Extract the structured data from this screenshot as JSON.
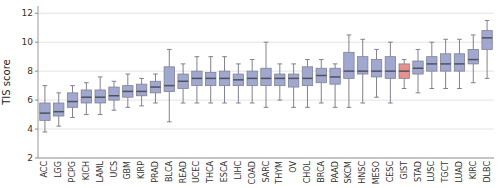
{
  "chart_data": {
    "type": "box",
    "categories": [
      "ACC",
      "LGG",
      "PCPG",
      "KICH",
      "LAML",
      "UCS",
      "GBM",
      "KIRP",
      "PRAD",
      "BLCA",
      "READ",
      "UCEC",
      "THCA",
      "ESCA",
      "LIHC",
      "COAD",
      "SARC",
      "THYM",
      "OV",
      "CHOL",
      "BRCA",
      "PAAD",
      "SKCM",
      "HNSC",
      "MESO",
      "CESC",
      "GIST",
      "STAD",
      "LUSC",
      "TGCT",
      "LUAD",
      "KIRC",
      "DLBC"
    ],
    "boxes": [
      {
        "q1": 4.6,
        "median": 5.1,
        "q3": 5.8,
        "whislo": 3.8,
        "whishi": 7.0
      },
      {
        "q1": 4.9,
        "median": 5.2,
        "q3": 5.8,
        "whislo": 4.2,
        "whishi": 6.5
      },
      {
        "q1": 5.5,
        "median": 5.9,
        "q3": 6.5,
        "whislo": 4.8,
        "whishi": 7.0
      },
      {
        "q1": 5.8,
        "median": 6.2,
        "q3": 6.7,
        "whislo": 5.0,
        "whishi": 7.2
      },
      {
        "q1": 5.8,
        "median": 6.2,
        "q3": 6.7,
        "whislo": 5.0,
        "whishi": 7.6
      },
      {
        "q1": 6.0,
        "median": 6.3,
        "q3": 6.9,
        "whislo": 5.3,
        "whishi": 7.3
      },
      {
        "q1": 6.2,
        "median": 6.6,
        "q3": 7.0,
        "whislo": 5.5,
        "whishi": 7.8
      },
      {
        "q1": 6.3,
        "median": 6.6,
        "q3": 7.1,
        "whislo": 5.6,
        "whishi": 7.5
      },
      {
        "q1": 6.5,
        "median": 6.9,
        "q3": 7.3,
        "whislo": 5.8,
        "whishi": 7.8
      },
      {
        "q1": 6.6,
        "median": 7.0,
        "q3": 8.3,
        "whislo": 4.5,
        "whishi": 9.5
      },
      {
        "q1": 6.8,
        "median": 7.3,
        "q3": 7.8,
        "whislo": 5.8,
        "whishi": 8.5
      },
      {
        "q1": 7.0,
        "median": 7.5,
        "q3": 8.0,
        "whislo": 5.8,
        "whishi": 9.0
      },
      {
        "q1": 7.0,
        "median": 7.5,
        "q3": 7.9,
        "whislo": 5.8,
        "whishi": 9.0
      },
      {
        "q1": 7.0,
        "median": 7.5,
        "q3": 8.0,
        "whislo": 5.8,
        "whishi": 9.0
      },
      {
        "q1": 7.0,
        "median": 7.4,
        "q3": 7.8,
        "whislo": 5.8,
        "whishi": 8.5
      },
      {
        "q1": 7.0,
        "median": 7.5,
        "q3": 8.0,
        "whislo": 5.8,
        "whishi": 8.8
      },
      {
        "q1": 7.0,
        "median": 7.5,
        "q3": 8.2,
        "whislo": 5.5,
        "whishi": 10.0
      },
      {
        "q1": 7.0,
        "median": 7.5,
        "q3": 7.8,
        "whislo": 6.0,
        "whishi": 8.5
      },
      {
        "q1": 6.9,
        "median": 7.5,
        "q3": 7.8,
        "whislo": 5.5,
        "whishi": 8.5
      },
      {
        "q1": 7.0,
        "median": 7.5,
        "q3": 8.3,
        "whislo": 5.5,
        "whishi": 8.8
      },
      {
        "q1": 7.2,
        "median": 7.7,
        "q3": 8.2,
        "whislo": 5.8,
        "whishi": 8.8
      },
      {
        "q1": 7.1,
        "median": 7.6,
        "q3": 8.2,
        "whislo": 5.5,
        "whishi": 8.5
      },
      {
        "q1": 7.5,
        "median": 8.0,
        "q3": 9.3,
        "whislo": 5.5,
        "whishi": 10.5
      },
      {
        "q1": 7.8,
        "median": 8.0,
        "q3": 9.0,
        "whislo": 5.8,
        "whishi": 10.2
      },
      {
        "q1": 7.6,
        "median": 8.0,
        "q3": 8.8,
        "whislo": 6.2,
        "whishi": 9.5
      },
      {
        "q1": 7.5,
        "median": 8.0,
        "q3": 9.0,
        "whislo": 5.8,
        "whishi": 10.0
      },
      {
        "q1": 7.5,
        "median": 8.0,
        "q3": 8.5,
        "whislo": 6.8,
        "whishi": 8.8
      },
      {
        "q1": 7.8,
        "median": 8.2,
        "q3": 8.7,
        "whislo": 6.5,
        "whishi": 9.5
      },
      {
        "q1": 8.0,
        "median": 8.5,
        "q3": 9.0,
        "whislo": 6.8,
        "whishi": 10.0
      },
      {
        "q1": 8.0,
        "median": 8.5,
        "q3": 9.2,
        "whislo": 6.8,
        "whishi": 10.2
      },
      {
        "q1": 8.0,
        "median": 8.5,
        "q3": 9.2,
        "whislo": 6.8,
        "whishi": 10.2
      },
      {
        "q1": 8.5,
        "median": 8.8,
        "q3": 9.5,
        "whislo": 7.2,
        "whishi": 10.5
      },
      {
        "q1": 9.5,
        "median": 10.3,
        "q3": 10.8,
        "whislo": 7.5,
        "whishi": 11.5
      }
    ],
    "colors": [
      "#a0a8d0",
      "#a0a8d0",
      "#a0a8d0",
      "#a0a8d0",
      "#a0a8d0",
      "#a0a8d0",
      "#a0a8d0",
      "#a0a8d0",
      "#a0a8d0",
      "#a0a8d0",
      "#a0a8d0",
      "#a0a8d0",
      "#a0a8d0",
      "#a0a8d0",
      "#a0a8d0",
      "#a0a8d0",
      "#a0a8d0",
      "#a0a8d0",
      "#a0a8d0",
      "#a0a8d0",
      "#a0a8d0",
      "#a0a8d0",
      "#a0a8d0",
      "#a0a8d0",
      "#a0a8d0",
      "#a0a8d0",
      "#e89090",
      "#a0a8d0",
      "#a0a8d0",
      "#a0a8d0",
      "#a0a8d0",
      "#a0a8d0",
      "#a0a8d0"
    ],
    "ylabel": "TIS score",
    "ylim": [
      2,
      12.5
    ],
    "yticks": [
      2,
      4,
      6,
      8,
      10,
      12
    ],
    "grid": true
  }
}
